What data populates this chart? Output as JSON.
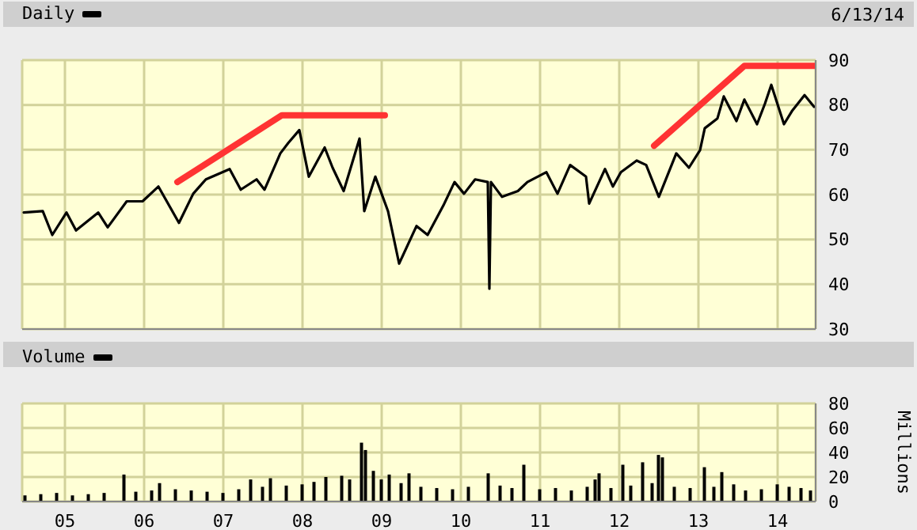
{
  "chart_data": [
    {
      "type": "line",
      "annotations": [
        "6/13/14"
      ],
      "legend": "top left",
      "grid": true,
      "tick_labels": "y",
      "xlim": [
        2004.46,
        2014.48
      ],
      "xticks": [
        2005,
        2006,
        2007,
        2008,
        2009,
        2010,
        2011,
        2012,
        2013,
        2014
      ],
      "ylim": [
        30,
        90
      ],
      "yticks": [
        30,
        40,
        50,
        60,
        70,
        80,
        90
      ],
      "series": [
        {
          "name": "Daily",
          "color": "#000000",
          "x": [
            2004.48,
            2004.72,
            2004.84,
            2005.02,
            2005.14,
            2005.42,
            2005.54,
            2005.78,
            2005.98,
            2006.18,
            2006.44,
            2006.62,
            2006.78,
            2007.08,
            2007.22,
            2007.42,
            2007.52,
            2007.72,
            2007.82,
            2007.96,
            2008.08,
            2008.28,
            2008.38,
            2008.52,
            2008.72,
            2008.78,
            2008.92,
            2009.08,
            2009.22,
            2009.44,
            2009.58,
            2009.78,
            2009.92,
            2010.04,
            2010.18,
            2010.34,
            2010.36,
            2010.38,
            2010.52,
            2010.72,
            2010.84,
            2011.08,
            2011.22,
            2011.38,
            2011.58,
            2011.62,
            2011.82,
            2011.92,
            2012.02,
            2012.22,
            2012.34,
            2012.5,
            2012.72,
            2012.88,
            2013.02,
            2013.08,
            2013.24,
            2013.32,
            2013.48,
            2013.58,
            2013.74,
            2013.84,
            2013.92,
            2014.08,
            2014.18,
            2014.34,
            2014.46
          ],
          "values": [
            56,
            56.3,
            51,
            56,
            52,
            56,
            52.7,
            58.5,
            58.5,
            61.8,
            53.7,
            60.2,
            63.4,
            65.7,
            61.1,
            63.4,
            61.1,
            69.2,
            71.5,
            74.4,
            64,
            70.5,
            66,
            60.8,
            72.5,
            56.3,
            64,
            56.3,
            44.6,
            53,
            51,
            57.6,
            62.8,
            60.2,
            63.4,
            62.8,
            39,
            62.8,
            59.5,
            60.8,
            62.8,
            65,
            60.2,
            66.6,
            64,
            58,
            65.7,
            61.8,
            65,
            67.6,
            66.6,
            59.5,
            69.2,
            66,
            69.9,
            74.8,
            77,
            81.9,
            76.4,
            81.2,
            75.7,
            80.3,
            84.5,
            75.7,
            78.6,
            82.2,
            79.6
          ]
        },
        {
          "type": "line",
          "color": "#ff3333",
          "x": [
            2006.42,
            2007.74,
            2009.04
          ],
          "values": [
            62.8,
            77.7,
            77.7
          ]
        },
        {
          "type": "line",
          "color": "#ff3333",
          "x": [
            2012.44,
            2013.58,
            2014.48
          ],
          "values": [
            70.9,
            88.7,
            88.7
          ]
        }
      ]
    },
    {
      "type": "bar",
      "legend": "top left",
      "grid": true,
      "ylabel": "Millions",
      "xlim": [
        2004.46,
        2014.48
      ],
      "xticks": [
        {
          "value": 2005,
          "label": "05"
        },
        {
          "value": 2006,
          "label": "06"
        },
        {
          "value": 2007,
          "label": "07"
        },
        {
          "value": 2008,
          "label": "08"
        },
        {
          "value": 2009,
          "label": "09"
        },
        {
          "value": 2010,
          "label": "10"
        },
        {
          "value": 2011,
          "label": "11"
        },
        {
          "value": 2012,
          "label": "12"
        },
        {
          "value": 2013,
          "label": "13"
        },
        {
          "value": 2014,
          "label": "14"
        }
      ],
      "ylim": [
        0,
        80
      ],
      "yticks": [
        0,
        20,
        40,
        60,
        80
      ],
      "series": [
        {
          "name": "Volume",
          "color": "#000000",
          "x": [
            2004.5,
            2004.7,
            2004.9,
            2005.1,
            2005.3,
            2005.5,
            2005.75,
            2005.9,
            2006.1,
            2006.2,
            2006.4,
            2006.6,
            2006.8,
            2007.0,
            2007.2,
            2007.35,
            2007.5,
            2007.6,
            2007.8,
            2008.0,
            2008.15,
            2008.3,
            2008.5,
            2008.6,
            2008.75,
            2008.8,
            2008.9,
            2009.0,
            2009.1,
            2009.25,
            2009.35,
            2009.5,
            2009.7,
            2009.9,
            2010.1,
            2010.35,
            2010.5,
            2010.65,
            2010.8,
            2011.0,
            2011.2,
            2011.4,
            2011.6,
            2011.7,
            2011.75,
            2011.9,
            2012.05,
            2012.15,
            2012.3,
            2012.42,
            2012.5,
            2012.55,
            2012.7,
            2012.9,
            2013.08,
            2013.2,
            2013.3,
            2013.45,
            2013.6,
            2013.8,
            2014.0,
            2014.15,
            2014.3,
            2014.42
          ],
          "values": [
            5,
            6,
            7,
            5,
            6,
            7,
            22,
            8,
            9,
            15,
            10,
            9,
            8,
            7,
            10,
            18,
            12,
            19,
            13,
            14,
            16,
            20,
            21,
            18,
            48,
            42,
            25,
            18,
            22,
            15,
            23,
            12,
            11,
            10,
            12,
            23,
            13,
            11,
            30,
            10,
            11,
            9,
            12,
            18,
            23,
            11,
            30,
            13,
            32,
            15,
            38,
            36,
            12,
            11,
            28,
            12,
            24,
            14,
            9,
            10,
            14,
            12,
            11,
            9
          ]
        }
      ]
    }
  ]
}
